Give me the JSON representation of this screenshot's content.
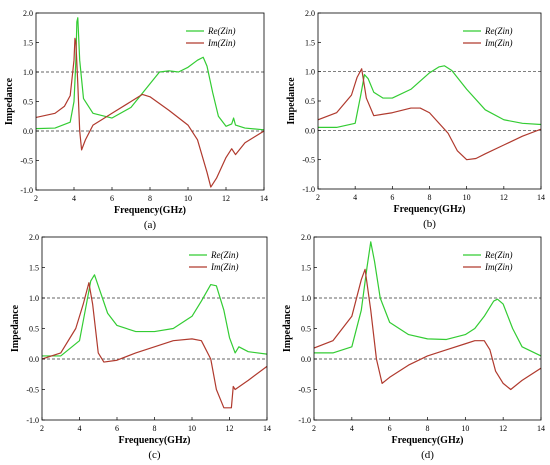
{
  "colors": {
    "re": "#33cc33",
    "im": "#b03a2e",
    "ref": "#333333",
    "axis": "#000000"
  },
  "chart_data": [
    {
      "type": "line",
      "panel_label": "(a)",
      "xlabel": "Frequency(GHz)",
      "ylabel": "Impedance",
      "xlim": [
        2,
        14
      ],
      "ylim": [
        -1.0,
        2.0
      ],
      "xticks": [
        "2",
        "4",
        "6",
        "8",
        "10",
        "12",
        "14"
      ],
      "yticks": [
        "-1.0",
        "-0.5",
        "0.0",
        "0.5",
        "1.0",
        "1.5",
        "2.0"
      ],
      "ref_lines": [
        0,
        1
      ],
      "legend": "top-right",
      "series": [
        {
          "name": "Re(Zin)",
          "color": "#33cc33",
          "x": [
            2,
            3,
            3.8,
            4.0,
            4.1,
            4.15,
            4.2,
            4.3,
            4.5,
            5,
            6,
            7,
            8,
            8.5,
            9,
            9.5,
            10,
            10.5,
            10.8,
            11,
            11.3,
            11.6,
            12,
            12.3,
            12.4,
            12.5,
            13,
            14
          ],
          "values": [
            0.04,
            0.05,
            0.15,
            0.5,
            1.2,
            1.85,
            1.92,
            1.2,
            0.55,
            0.3,
            0.22,
            0.4,
            0.8,
            1.0,
            1.02,
            1.0,
            1.08,
            1.2,
            1.25,
            1.1,
            0.65,
            0.25,
            0.08,
            0.12,
            0.22,
            0.1,
            0.05,
            0.02
          ]
        },
        {
          "name": "Im(Zin)",
          "color": "#b03a2e",
          "x": [
            2,
            3,
            3.5,
            3.8,
            4.0,
            4.05,
            4.1,
            4.2,
            4.3,
            4.4,
            4.6,
            5,
            5.5,
            6,
            7,
            7.6,
            8,
            9,
            10,
            10.5,
            11,
            11.2,
            11.5,
            12,
            12.3,
            12.5,
            13,
            14
          ],
          "values": [
            0.23,
            0.3,
            0.42,
            0.6,
            1.2,
            1.57,
            1.5,
            0.8,
            0.0,
            -0.32,
            -0.15,
            0.1,
            0.2,
            0.3,
            0.5,
            0.62,
            0.58,
            0.35,
            0.1,
            -0.15,
            -0.7,
            -0.95,
            -0.8,
            -0.45,
            -0.3,
            -0.4,
            -0.2,
            0.0
          ]
        }
      ]
    },
    {
      "type": "line",
      "panel_label": "(b)",
      "xlabel": "Frequency(GHz)",
      "ylabel": "Impedance",
      "xlim": [
        2,
        14
      ],
      "ylim": [
        -1.0,
        2.0
      ],
      "xticks": [
        "2",
        "4",
        "6",
        "8",
        "10",
        "12",
        "14"
      ],
      "yticks": [
        "-1.0",
        "-0.5",
        "0.0",
        "0.5",
        "1.0",
        "1.5",
        "2.0"
      ],
      "ref_lines": [
        0,
        1
      ],
      "legend": "top-right",
      "series": [
        {
          "name": "Re(Zin)",
          "color": "#33cc33",
          "x": [
            2,
            3,
            4,
            4.3,
            4.5,
            4.7,
            5,
            5.5,
            6,
            7,
            8,
            8.5,
            8.8,
            9.2,
            10,
            11,
            12,
            13,
            14
          ],
          "values": [
            0.05,
            0.05,
            0.12,
            0.6,
            0.95,
            0.88,
            0.65,
            0.55,
            0.55,
            0.7,
            0.98,
            1.08,
            1.1,
            1.02,
            0.7,
            0.35,
            0.18,
            0.12,
            0.1
          ]
        },
        {
          "name": "Im(Zin)",
          "color": "#b03a2e",
          "x": [
            2,
            3,
            3.8,
            4.1,
            4.35,
            4.6,
            5,
            6,
            7,
            7.5,
            8,
            9,
            9.5,
            10,
            10.5,
            11,
            12,
            13,
            14
          ],
          "values": [
            0.18,
            0.3,
            0.6,
            0.9,
            1.05,
            0.55,
            0.25,
            0.3,
            0.38,
            0.38,
            0.3,
            -0.05,
            -0.35,
            -0.5,
            -0.48,
            -0.4,
            -0.25,
            -0.1,
            0.02
          ]
        }
      ]
    },
    {
      "type": "line",
      "panel_label": "(c)",
      "xlabel": "Frequency(GHz)",
      "ylabel": "Impedance",
      "xlim": [
        2,
        14
      ],
      "ylim": [
        -1.0,
        2.0
      ],
      "xticks": [
        "2",
        "4",
        "6",
        "8",
        "10",
        "12",
        "14"
      ],
      "yticks": [
        "-1.0",
        "-0.5",
        "0.0",
        "0.5",
        "1.0",
        "1.5",
        "2.0"
      ],
      "ref_lines": [
        0,
        1
      ],
      "legend": "top-right",
      "series": [
        {
          "name": "Re(Zin)",
          "color": "#33cc33",
          "x": [
            2,
            3,
            4,
            4.4,
            4.6,
            4.8,
            5.0,
            5.5,
            6,
            7,
            8,
            9,
            10,
            10.5,
            11,
            11.3,
            11.7,
            12,
            12.3,
            12.5,
            13,
            14
          ],
          "values": [
            0.05,
            0.05,
            0.3,
            0.95,
            1.28,
            1.38,
            1.2,
            0.75,
            0.55,
            0.45,
            0.45,
            0.5,
            0.7,
            0.95,
            1.22,
            1.2,
            0.8,
            0.35,
            0.1,
            0.2,
            0.12,
            0.08
          ]
        },
        {
          "name": "Im(Zin)",
          "color": "#b03a2e",
          "x": [
            2,
            3,
            3.8,
            4.2,
            4.5,
            4.7,
            5.0,
            5.3,
            6,
            7,
            8,
            9,
            10,
            10.5,
            11,
            11.3,
            11.7,
            12.1,
            12.2,
            12.3,
            13,
            14
          ],
          "values": [
            0.0,
            0.1,
            0.5,
            0.9,
            1.25,
            0.9,
            0.1,
            -0.05,
            -0.02,
            0.1,
            0.2,
            0.3,
            0.33,
            0.3,
            0.0,
            -0.5,
            -0.8,
            -0.8,
            -0.45,
            -0.5,
            -0.35,
            -0.12
          ]
        }
      ]
    },
    {
      "type": "line",
      "panel_label": "(d)",
      "xlabel": "Frequency(GHz)",
      "ylabel": "Impedance",
      "xlim": [
        2,
        14
      ],
      "ylim": [
        -1.0,
        2.0
      ],
      "xticks": [
        "2",
        "4",
        "6",
        "8",
        "10",
        "12",
        "14"
      ],
      "yticks": [
        "-1.0",
        "-0.5",
        "0.0",
        "0.5",
        "1.0",
        "1.5",
        "2.0"
      ],
      "ref_lines": [
        0,
        1
      ],
      "legend": "top-right",
      "series": [
        {
          "name": "Re(Zin)",
          "color": "#33cc33",
          "x": [
            2,
            3,
            4,
            4.5,
            4.8,
            5.0,
            5.2,
            5.5,
            6,
            7,
            8,
            9,
            10,
            10.5,
            11,
            11.5,
            11.7,
            12,
            12.5,
            13,
            14
          ],
          "values": [
            0.1,
            0.1,
            0.2,
            0.8,
            1.5,
            1.92,
            1.6,
            1.0,
            0.6,
            0.4,
            0.33,
            0.32,
            0.4,
            0.5,
            0.7,
            0.95,
            0.98,
            0.9,
            0.5,
            0.2,
            0.05
          ]
        },
        {
          "name": "Im(Zin)",
          "color": "#b03a2e",
          "x": [
            2,
            3,
            4,
            4.5,
            4.7,
            5.0,
            5.3,
            5.6,
            6,
            7,
            8,
            9,
            10,
            10.5,
            11,
            11.3,
            11.6,
            12,
            12.4,
            13,
            14
          ],
          "values": [
            0.18,
            0.3,
            0.7,
            1.3,
            1.47,
            0.8,
            0.0,
            -0.4,
            -0.3,
            -0.1,
            0.05,
            0.15,
            0.25,
            0.3,
            0.3,
            0.15,
            -0.2,
            -0.4,
            -0.5,
            -0.35,
            -0.15
          ]
        }
      ]
    }
  ]
}
